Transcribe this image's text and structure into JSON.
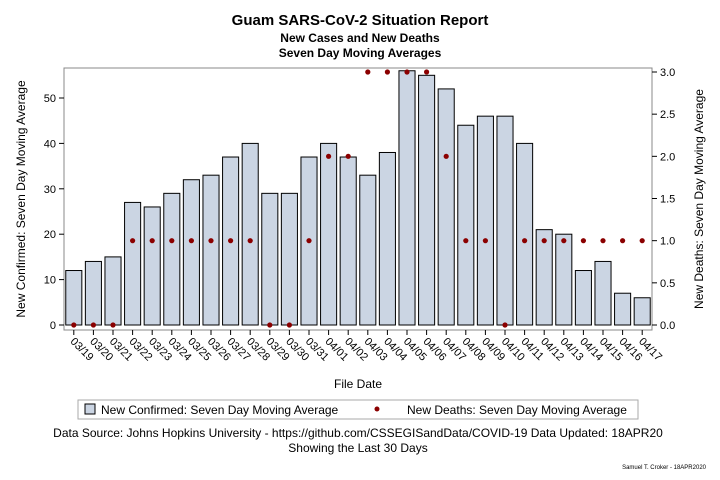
{
  "chart_data": {
    "type": "bar",
    "title": "Guam SARS-CoV-2 Situation Report",
    "subtitle": [
      "New Cases and New Deaths",
      "Seven Day Moving Averages"
    ],
    "xlabel": "File Date",
    "ylabel": "New Confirmed: Seven Day Moving Average",
    "y2label": "New Deaths: Seven Day Moving Average",
    "ylim": [
      0,
      57
    ],
    "y2lim": [
      0,
      3.0
    ],
    "yticks": [
      "0",
      "10",
      "20",
      "30",
      "40",
      "50"
    ],
    "y2ticks": [
      "0.0",
      "0.5",
      "1.0",
      "1.5",
      "2.0",
      "2.5",
      "3.0"
    ],
    "grid": false,
    "legend_position": "bottom",
    "categories": [
      "03/19",
      "03/20",
      "03/21",
      "03/22",
      "03/23",
      "03/24",
      "03/25",
      "03/26",
      "03/27",
      "03/28",
      "03/29",
      "03/30",
      "03/31",
      "04/01",
      "04/02",
      "04/03",
      "04/04",
      "04/05",
      "04/06",
      "04/07",
      "04/08",
      "04/09",
      "04/10",
      "04/11",
      "04/12",
      "04/13",
      "04/14",
      "04/15",
      "04/16",
      "04/17"
    ],
    "series": [
      {
        "name": "New Confirmed: Seven Day Moving Average",
        "type": "bar",
        "axis": "left",
        "color": "#cbd5e3",
        "values": [
          12,
          14,
          15,
          27,
          26,
          29,
          32,
          33,
          37,
          40,
          29,
          29,
          37,
          40,
          37,
          33,
          38,
          56,
          55,
          52,
          44,
          46,
          46,
          40,
          21,
          20,
          12,
          14,
          7,
          6
        ]
      },
      {
        "name": "New Deaths: Seven Day Moving Average",
        "type": "scatter",
        "axis": "right",
        "color": "#8b0000",
        "values": [
          0,
          0,
          0,
          1,
          1,
          1,
          1,
          1,
          1,
          1,
          0,
          0,
          1,
          2,
          2,
          3,
          3,
          3,
          3,
          2,
          1,
          1,
          0,
          1,
          1,
          1,
          1,
          1,
          1,
          1
        ]
      }
    ]
  },
  "footer": {
    "source": "Data Source: Johns Hopkins University - https://github.com/CSSEGISandData/COVID-19 Data Updated: 18APR20",
    "period": "Showing the Last 30 Days",
    "credit": "Samuel T. Croker - 18APR2020"
  }
}
